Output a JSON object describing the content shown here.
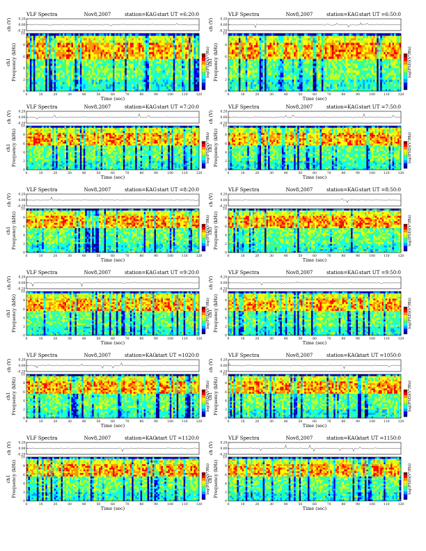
{
  "page": {
    "title_left": "VLF Spectra",
    "date": "Nov8,2007",
    "station": "station=KAG",
    "ut_prefix": "start  UT"
  },
  "panel_labels": {
    "xlabel": "Time (sec)",
    "ylabel_freq": "Frequency (kHz)",
    "channel_label": "ch1",
    "ylabel_signal": "ch (V)",
    "colorbar_label": "log(PSD)(V²/Hz)"
  },
  "colors": {
    "colormap": [
      "#00007f",
      "#0000ff",
      "#00a0ff",
      "#00ffff",
      "#40ff80",
      "#c0ff20",
      "#ffff00",
      "#ff9000",
      "#ff0000",
      "#8f0000"
    ],
    "background": "#ffffff"
  },
  "chart_data": [
    {
      "type": "heatmap",
      "start_ut": "=6:20:0",
      "x_ticks": [
        0,
        10,
        20,
        30,
        40,
        50,
        60,
        70,
        80,
        90,
        100,
        110,
        120
      ],
      "y_ticks": [
        0,
        2,
        4,
        6,
        8,
        10
      ],
      "signal_ticks": [
        "0.20",
        "0.00",
        "-0.20"
      ],
      "xlim": [
        0,
        120
      ],
      "ylim": [
        0,
        10
      ],
      "signal_ylim": [
        -0.2,
        0.2
      ],
      "intense_band_khz": [
        5.5,
        8.5
      ]
    },
    {
      "type": "heatmap",
      "start_ut": "=6:50:0",
      "x_ticks": [
        0,
        10,
        20,
        30,
        40,
        50,
        60,
        70,
        80,
        90,
        100,
        110,
        120
      ],
      "y_ticks": [
        0,
        2,
        4,
        6,
        8,
        10
      ],
      "signal_ticks": [
        "0.20",
        "0.00",
        "-0.20"
      ],
      "xlim": [
        0,
        120
      ],
      "ylim": [
        0,
        10
      ],
      "signal_ylim": [
        -0.2,
        0.2
      ],
      "intense_band_khz": [
        5.5,
        8.5
      ]
    },
    {
      "type": "heatmap",
      "start_ut": "=7:20:0",
      "x_ticks": [
        0,
        10,
        20,
        30,
        40,
        50,
        60,
        70,
        80,
        90,
        100,
        110,
        120
      ],
      "y_ticks": [
        0,
        2,
        4,
        6,
        8,
        10
      ],
      "signal_ticks": [
        "0.20",
        "0.00",
        "-0.20"
      ],
      "xlim": [
        0,
        120
      ],
      "ylim": [
        0,
        10
      ],
      "signal_ylim": [
        -0.2,
        0.2
      ],
      "intense_band_khz": [
        5.5,
        8.5
      ]
    },
    {
      "type": "heatmap",
      "start_ut": "=7:50:0",
      "x_ticks": [
        0,
        10,
        20,
        30,
        40,
        50,
        60,
        70,
        80,
        90,
        100,
        110,
        120
      ],
      "y_ticks": [
        0,
        2,
        4,
        6,
        8,
        10
      ],
      "signal_ticks": [
        "0.20",
        "0.00",
        "-0.20"
      ],
      "xlim": [
        0,
        120
      ],
      "ylim": [
        0,
        10
      ],
      "signal_ylim": [
        -0.2,
        0.2
      ],
      "intense_band_khz": [
        5.5,
        8.5
      ]
    },
    {
      "type": "heatmap",
      "start_ut": "=8:20:0",
      "x_ticks": [
        0,
        10,
        20,
        30,
        40,
        50,
        60,
        70,
        80,
        90,
        100,
        110,
        120
      ],
      "y_ticks": [
        0,
        2,
        4,
        6,
        8,
        10
      ],
      "signal_ticks": [
        "0.20",
        "0.00",
        "-0.20"
      ],
      "xlim": [
        0,
        120
      ],
      "ylim": [
        0,
        10
      ],
      "signal_ylim": [
        -0.2,
        0.2
      ],
      "intense_band_khz": [
        5.5,
        8.5
      ]
    },
    {
      "type": "heatmap",
      "start_ut": "=8:50:0",
      "x_ticks": [
        0,
        10,
        20,
        30,
        40,
        50,
        60,
        70,
        80,
        90,
        100,
        110,
        120
      ],
      "y_ticks": [
        0,
        2,
        4,
        6,
        8,
        10
      ],
      "signal_ticks": [
        "0.20",
        "0.00",
        "-0.20"
      ],
      "xlim": [
        0,
        120
      ],
      "ylim": [
        0,
        10
      ],
      "signal_ylim": [
        -0.2,
        0.2
      ],
      "intense_band_khz": [
        5.5,
        8.5
      ]
    },
    {
      "type": "heatmap",
      "start_ut": "=9:20:0",
      "x_ticks": [
        0,
        10,
        20,
        30,
        40,
        50,
        60,
        70,
        80,
        90,
        100,
        110,
        120
      ],
      "y_ticks": [
        0,
        2,
        4,
        6,
        8,
        10
      ],
      "signal_ticks": [
        "0.20",
        "0.00",
        "-0.20"
      ],
      "xlim": [
        0,
        120
      ],
      "ylim": [
        0,
        10
      ],
      "signal_ylim": [
        -0.2,
        0.2
      ],
      "intense_band_khz": [
        5.5,
        8.5
      ]
    },
    {
      "type": "heatmap",
      "start_ut": "=9:50:0",
      "x_ticks": [
        0,
        10,
        20,
        30,
        40,
        50,
        60,
        70,
        80,
        90,
        100,
        110,
        120
      ],
      "y_ticks": [
        0,
        2,
        4,
        6,
        8,
        10
      ],
      "signal_ticks": [
        "0.20",
        "0.00",
        "-0.20"
      ],
      "xlim": [
        0,
        120
      ],
      "ylim": [
        0,
        10
      ],
      "signal_ylim": [
        -0.2,
        0.2
      ],
      "intense_band_khz": [
        5.5,
        8.5
      ]
    },
    {
      "type": "heatmap",
      "start_ut": "=1020:0",
      "x_ticks": [
        0,
        10,
        20,
        30,
        40,
        50,
        60,
        70,
        80,
        90,
        100,
        110,
        120
      ],
      "y_ticks": [
        0,
        2,
        4,
        6,
        8,
        10
      ],
      "signal_ticks": [
        "0.20",
        "0.00",
        "-0.20"
      ],
      "xlim": [
        0,
        120
      ],
      "ylim": [
        0,
        10
      ],
      "signal_ylim": [
        -0.2,
        0.2
      ],
      "intense_band_khz": [
        5.5,
        8.5
      ]
    },
    {
      "type": "heatmap",
      "start_ut": "=1050:0",
      "x_ticks": [
        0,
        10,
        20,
        30,
        40,
        50,
        60,
        70,
        80,
        90,
        100,
        110,
        120
      ],
      "y_ticks": [
        0,
        2,
        4,
        6,
        8,
        10
      ],
      "signal_ticks": [
        "0.20",
        "0.00",
        "-0.20"
      ],
      "xlim": [
        0,
        120
      ],
      "ylim": [
        0,
        10
      ],
      "signal_ylim": [
        -0.2,
        0.2
      ],
      "intense_band_khz": [
        5.5,
        8.5
      ]
    },
    {
      "type": "heatmap",
      "start_ut": "=1120:0",
      "x_ticks": [
        0,
        10,
        20,
        30,
        40,
        50,
        60,
        70,
        80,
        90,
        100,
        110,
        120
      ],
      "y_ticks": [
        0,
        2,
        4,
        6,
        8,
        10
      ],
      "signal_ticks": [
        "0.20",
        "0.00",
        "-0.20"
      ],
      "xlim": [
        0,
        120
      ],
      "ylim": [
        0,
        10
      ],
      "signal_ylim": [
        -0.2,
        0.2
      ],
      "intense_band_khz": [
        5.5,
        8.5
      ]
    },
    {
      "type": "heatmap",
      "start_ut": "=1150:0",
      "x_ticks": [
        0,
        10,
        20,
        30,
        40,
        50,
        60,
        70,
        80,
        90,
        100,
        110,
        120
      ],
      "y_ticks": [
        0,
        2,
        4,
        6,
        8,
        10
      ],
      "signal_ticks": [
        "0.20",
        "0.00",
        "-0.20"
      ],
      "xlim": [
        0,
        120
      ],
      "ylim": [
        0,
        10
      ],
      "signal_ylim": [
        -0.2,
        0.2
      ],
      "intense_band_khz": [
        5.5,
        8.5
      ]
    }
  ]
}
